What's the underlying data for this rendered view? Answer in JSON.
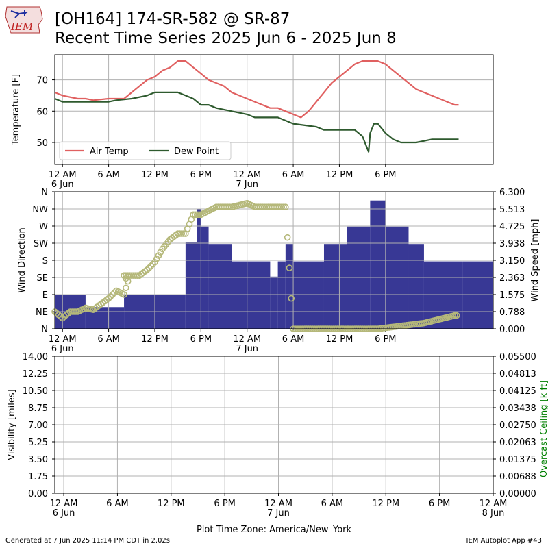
{
  "header": {
    "title_line1": "[OH164] 174-SR-582 @ SR-87",
    "title_line2": "Recent Time Series 2025 Jun 6 - 2025 Jun 8",
    "logo_text": "IEM"
  },
  "footer": {
    "generated": "Generated at 7 Jun 2025 11:14 PM CDT in 2.02s",
    "app": "IEM Autoplot App #43",
    "timezone_label": "Plot Time Zone: America/New_York"
  },
  "colors": {
    "air_temp": "#e06060",
    "dew_point": "#2e5a2e",
    "wind_speed": "#383895",
    "wind_direction": "#b5b87a",
    "ceiling_axis": "#008000",
    "grid": "#b0b0b0"
  },
  "chart_data": [
    {
      "type": "line",
      "ylabel": "Temperature [F]",
      "xlim_hours": [
        -1,
        56
      ],
      "ylim": [
        43,
        78
      ],
      "yticks": [
        50,
        60,
        70
      ],
      "x_ticks": [
        {
          "hour": 0,
          "label": "12 AM",
          "sub": "6 Jun"
        },
        {
          "hour": 6,
          "label": "6 AM",
          "sub": ""
        },
        {
          "hour": 12,
          "label": "12 PM",
          "sub": ""
        },
        {
          "hour": 18,
          "label": "6 PM",
          "sub": ""
        },
        {
          "hour": 24,
          "label": "12 AM",
          "sub": "7 Jun"
        },
        {
          "hour": 30,
          "label": "6 AM",
          "sub": ""
        },
        {
          "hour": 36,
          "label": "12 PM",
          "sub": ""
        },
        {
          "hour": 42,
          "label": "6 PM",
          "sub": ""
        }
      ],
      "legend": {
        "placement": "lower-left"
      },
      "series": [
        {
          "name": "Air Temp",
          "color_key": "air_temp",
          "points": [
            [
              -1,
              66
            ],
            [
              0,
              65
            ],
            [
              2,
              64
            ],
            [
              3,
              64
            ],
            [
              4,
              63.5
            ],
            [
              6,
              64
            ],
            [
              8,
              64
            ],
            [
              9,
              66
            ],
            [
              10,
              68
            ],
            [
              11,
              70
            ],
            [
              12,
              71
            ],
            [
              13,
              73
            ],
            [
              14,
              74
            ],
            [
              15,
              76
            ],
            [
              16,
              76
            ],
            [
              17,
              74
            ],
            [
              18,
              72
            ],
            [
              19,
              70
            ],
            [
              20,
              69
            ],
            [
              21,
              68
            ],
            [
              22,
              66
            ],
            [
              24,
              64
            ],
            [
              25,
              63
            ],
            [
              26,
              62
            ],
            [
              27,
              61
            ],
            [
              28,
              61
            ],
            [
              29,
              60
            ],
            [
              30,
              59
            ],
            [
              31,
              58
            ],
            [
              32,
              60
            ],
            [
              33,
              63
            ],
            [
              34,
              66
            ],
            [
              35,
              69
            ],
            [
              36,
              71
            ],
            [
              37,
              73
            ],
            [
              38,
              75
            ],
            [
              39,
              76
            ],
            [
              40,
              76
            ],
            [
              41,
              76
            ],
            [
              42,
              75
            ],
            [
              43,
              73
            ],
            [
              44,
              71
            ],
            [
              45,
              69
            ],
            [
              46,
              67
            ],
            [
              47,
              66
            ],
            [
              48,
              65
            ],
            [
              49,
              64
            ],
            [
              50,
              63
            ],
            [
              51,
              62
            ],
            [
              51.5,
              62
            ]
          ]
        },
        {
          "name": "Dew Point",
          "color_key": "dew_point",
          "points": [
            [
              -1,
              64
            ],
            [
              0,
              63
            ],
            [
              3,
              63
            ],
            [
              6,
              63
            ],
            [
              7,
              63.5
            ],
            [
              9,
              64
            ],
            [
              11,
              65
            ],
            [
              12,
              66
            ],
            [
              13,
              66
            ],
            [
              14,
              66
            ],
            [
              15,
              66
            ],
            [
              16,
              65
            ],
            [
              17,
              64
            ],
            [
              18,
              62
            ],
            [
              19,
              62
            ],
            [
              20,
              61
            ],
            [
              22,
              60
            ],
            [
              24,
              59
            ],
            [
              25,
              58
            ],
            [
              27,
              58
            ],
            [
              28,
              58
            ],
            [
              29,
              57
            ],
            [
              30,
              56
            ],
            [
              33,
              55
            ],
            [
              34,
              54
            ],
            [
              36,
              54
            ],
            [
              37,
              54
            ],
            [
              38,
              54
            ],
            [
              39,
              52
            ],
            [
              39.8,
              47
            ],
            [
              40,
              53
            ],
            [
              40.5,
              56
            ],
            [
              41,
              56
            ],
            [
              42,
              53
            ],
            [
              43,
              51
            ],
            [
              44,
              50
            ],
            [
              46,
              50
            ],
            [
              48,
              51
            ],
            [
              49,
              51
            ],
            [
              50,
              51
            ],
            [
              51.5,
              51
            ]
          ]
        }
      ]
    },
    {
      "type": "bar",
      "ylabel": "Wind Direction",
      "ylabel_right": "Wind Speed [mph]",
      "xlim_hours": [
        -1,
        56
      ],
      "direction_ticks": [
        "N",
        "NE",
        "E",
        "SE",
        "S",
        "SW",
        "W",
        "NW",
        "N"
      ],
      "direction_range": [
        0,
        360
      ],
      "speed_range": [
        0,
        6.3
      ],
      "speed_ticks": [
        "0.000",
        "0.788",
        "1.575",
        "2.363",
        "3.150",
        "3.938",
        "4.725",
        "5.513",
        "6.300"
      ],
      "x_ticks": [
        {
          "hour": 0,
          "label": "12 AM",
          "sub": "6 Jun"
        },
        {
          "hour": 6,
          "label": "6 AM",
          "sub": ""
        },
        {
          "hour": 12,
          "label": "12 PM",
          "sub": ""
        },
        {
          "hour": 18,
          "label": "6 PM",
          "sub": ""
        },
        {
          "hour": 24,
          "label": "12 AM",
          "sub": "7 Jun"
        },
        {
          "hour": 30,
          "label": "6 AM",
          "sub": ""
        },
        {
          "hour": 36,
          "label": "12 PM",
          "sub": ""
        },
        {
          "hour": 42,
          "label": "6 PM",
          "sub": ""
        }
      ],
      "wind_speed_steps": [
        [
          -2,
          1.575
        ],
        [
          3,
          1.0
        ],
        [
          8,
          1.575
        ],
        [
          16,
          4.0
        ],
        [
          17.5,
          5.5
        ],
        [
          18,
          4.7
        ],
        [
          19,
          3.9
        ],
        [
          22,
          3.1
        ],
        [
          27,
          2.4
        ],
        [
          28,
          3.1
        ],
        [
          29,
          3.9
        ],
        [
          30,
          3.1
        ],
        [
          34,
          3.9
        ],
        [
          37,
          4.7
        ],
        [
          40,
          5.9
        ],
        [
          42,
          4.7
        ],
        [
          45,
          3.9
        ],
        [
          47,
          3.1
        ],
        [
          52,
          3.1
        ]
      ],
      "wind_direction_points": [
        [
          -1,
          45
        ],
        [
          0,
          28
        ],
        [
          1,
          45
        ],
        [
          2,
          45
        ],
        [
          3,
          55
        ],
        [
          4,
          50
        ],
        [
          5,
          65
        ],
        [
          6,
          80
        ],
        [
          7,
          100
        ],
        [
          8,
          90
        ],
        [
          8.5,
          125
        ],
        [
          8,
          140
        ],
        [
          9,
          140
        ],
        [
          10,
          140
        ],
        [
          11,
          155
        ],
        [
          12,
          175
        ],
        [
          13,
          210
        ],
        [
          14,
          235
        ],
        [
          15,
          250
        ],
        [
          16,
          250
        ],
        [
          17,
          300
        ],
        [
          18,
          300
        ],
        [
          19,
          310
        ],
        [
          20,
          320
        ],
        [
          22,
          320
        ],
        [
          24,
          330
        ],
        [
          25,
          320
        ],
        [
          27,
          320
        ],
        [
          28,
          320
        ],
        [
          29,
          320
        ],
        [
          30,
          0
        ],
        [
          32,
          0
        ],
        [
          33,
          0
        ],
        [
          35,
          0
        ],
        [
          37,
          0
        ],
        [
          39,
          0
        ],
        [
          41,
          0
        ],
        [
          43,
          5
        ],
        [
          45,
          10
        ],
        [
          47,
          15
        ],
        [
          48,
          20
        ],
        [
          49,
          25
        ],
        [
          50,
          30
        ],
        [
          51,
          35
        ],
        [
          51.5,
          35
        ]
      ]
    },
    {
      "type": "line",
      "ylabel": "Visibility [miles]",
      "ylabel_right": "Overcast Ceiling [k ft]",
      "xlim_hours": [
        -1,
        48
      ],
      "ylim": [
        0,
        14
      ],
      "yticks": [
        "0.00",
        "1.75",
        "3.50",
        "5.25",
        "7.00",
        "8.75",
        "10.50",
        "12.25",
        "14.00"
      ],
      "yticks_right": [
        "0.00000",
        "0.00688",
        "0.01375",
        "0.02063",
        "0.02750",
        "0.03438",
        "0.04125",
        "0.04813",
        "0.05500"
      ],
      "xlabel": "Plot Time Zone: America/New_York",
      "x_ticks": [
        {
          "hour": 0,
          "label": "12 AM",
          "sub": "6 Jun"
        },
        {
          "hour": 6,
          "label": "6 AM",
          "sub": ""
        },
        {
          "hour": 12,
          "label": "12 PM",
          "sub": ""
        },
        {
          "hour": 18,
          "label": "6 PM",
          "sub": ""
        },
        {
          "hour": 24,
          "label": "12 AM",
          "sub": "7 Jun"
        },
        {
          "hour": 30,
          "label": "6 AM",
          "sub": ""
        },
        {
          "hour": 36,
          "label": "12 PM",
          "sub": ""
        },
        {
          "hour": 42,
          "label": "6 PM",
          "sub": ""
        },
        {
          "hour": 48,
          "label": "12 AM",
          "sub": "8 Jun"
        }
      ],
      "series": []
    }
  ]
}
